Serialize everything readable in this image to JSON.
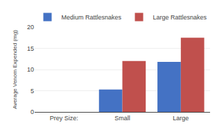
{
  "chart_data": {
    "type": "bar",
    "categories": [
      "Prey Size:",
      "Small",
      "Large"
    ],
    "series": [
      {
        "name": "Medium Rattlesnakes",
        "color": "#4472C4",
        "values": [
          null,
          5.3,
          11.8
        ]
      },
      {
        "name": "Large Rattlesnakes",
        "color": "#C0504D",
        "values": [
          null,
          12.0,
          17.5
        ]
      }
    ],
    "ylabel": "Average Venom Expended (mg)",
    "ylim": [
      0,
      20
    ],
    "yticks": [
      0,
      5,
      10,
      15,
      20
    ],
    "grid": true,
    "legend": "top"
  }
}
